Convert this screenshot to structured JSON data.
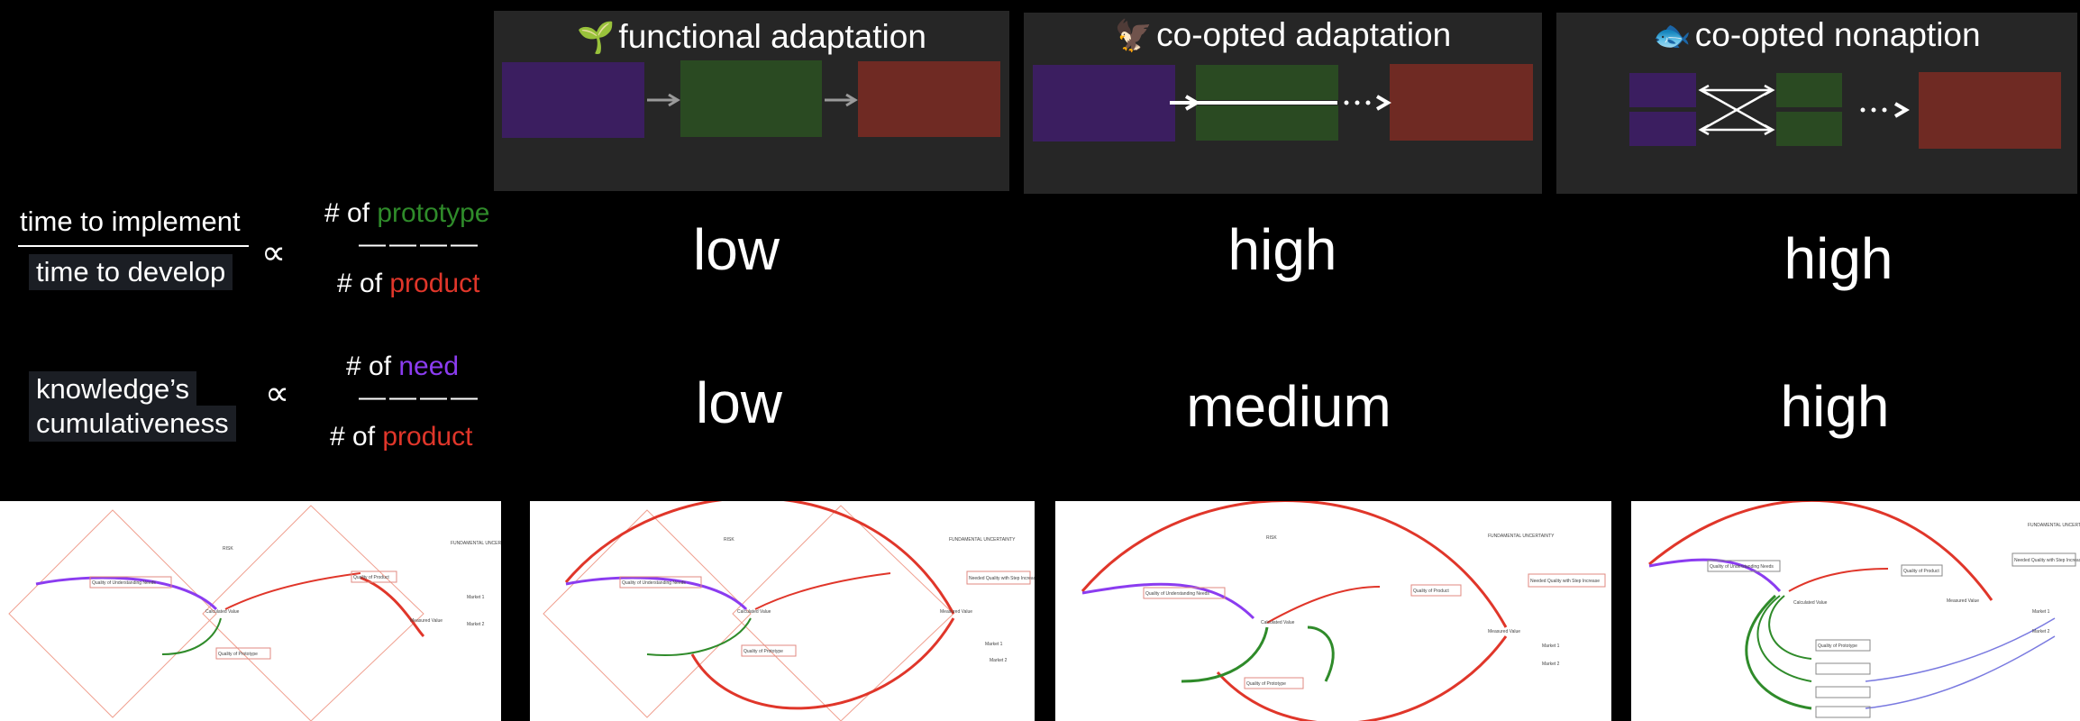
{
  "columns": [
    {
      "id": "functional",
      "emoji": "🌱",
      "title": "functional adaptation"
    },
    {
      "id": "coopted",
      "emoji": "🦅",
      "title": "co-opted adaptation"
    },
    {
      "id": "nonaption",
      "emoji": "🐟",
      "title": "co-opted nonaption"
    }
  ],
  "rows": [
    {
      "left_numerator": "time to implement",
      "left_denominator": "time to develop",
      "propto": "∝",
      "right_num_prefix": "# of ",
      "right_num_word": "prototype",
      "right_den_prefix": "# of ",
      "right_den_word": "product",
      "dashes": "————",
      "values": [
        "low",
        "high",
        "high"
      ]
    },
    {
      "left_line1": "knowledge’s",
      "left_line2": "cumulativeness",
      "propto": "∝",
      "right_num_prefix": "# of ",
      "right_num_word": "need",
      "right_den_prefix": "# of ",
      "right_den_word": "product",
      "dashes": "————",
      "values": [
        "low",
        "medium",
        "high"
      ]
    }
  ],
  "colors": {
    "panel_bg": "#262626",
    "purple_box": "#3b1e60",
    "green_box": "#2a4a22",
    "red_box": "#6f2a23",
    "prototype_text": "#2f8b2a",
    "product_text": "#e0362a",
    "need_text": "#8b3cf0"
  },
  "diagram_labels": {
    "quality_of_understanding_needs": "Quality of Understanding Needs",
    "quality_of_product": "Quality of Product",
    "quality_of_prototype": "Quality of Prototype",
    "calculated_value": "Calculated Value",
    "measured_value": "Measured Value",
    "risk": "RISK",
    "fundamental_uncertainty": "FUNDAMENTAL UNCERTAINTY",
    "market_1": "Market 1",
    "market_2": "Market 2",
    "needed_quality": "Needed Quality with Step Increase"
  }
}
